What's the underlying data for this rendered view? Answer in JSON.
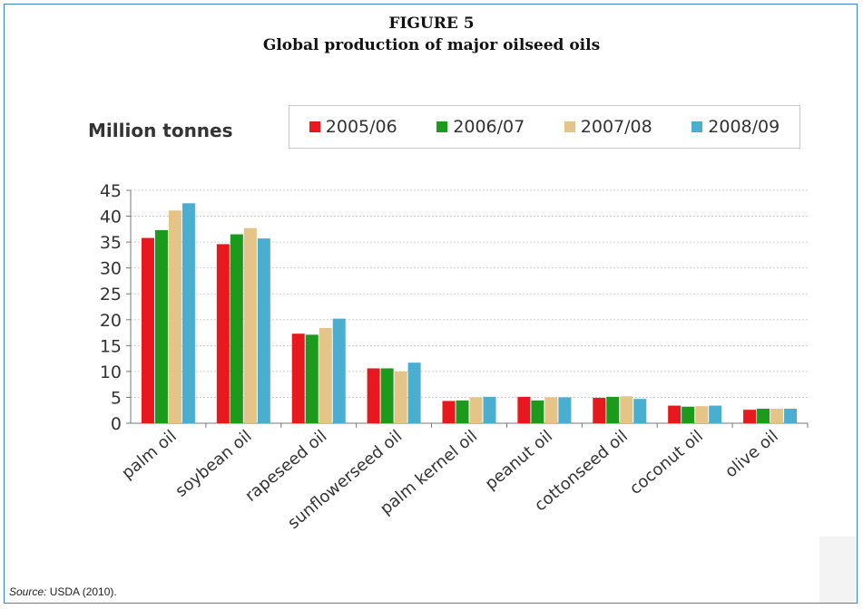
{
  "figure": {
    "label": "FIGURE 5",
    "title": "Global production of major oilseed oils"
  },
  "source": {
    "label": "Source:",
    "text": "USDA (2010)."
  },
  "chart_data": {
    "type": "bar",
    "ylabel": "Million tonnes",
    "ylim": [
      0,
      45
    ],
    "yticks": [
      0,
      5,
      10,
      15,
      20,
      25,
      30,
      35,
      40,
      45
    ],
    "grid": true,
    "legend_position": "top-right",
    "categories": [
      "palm oil",
      "soybean oil",
      "rapeseed oil",
      "sunflowerseed oil",
      "palm kernel oil",
      "peanut oil",
      "cottonseed oil",
      "coconut oil",
      "olive oil"
    ],
    "series": [
      {
        "name": "2005/06",
        "color": "#e8191e",
        "values": [
          35.8,
          34.6,
          17.3,
          10.6,
          4.3,
          5.1,
          4.9,
          3.4,
          2.6
        ]
      },
      {
        "name": "2006/07",
        "color": "#1c9a1c",
        "values": [
          37.3,
          36.5,
          17.1,
          10.6,
          4.4,
          4.4,
          5.1,
          3.2,
          2.8
        ]
      },
      {
        "name": "2007/08",
        "color": "#e4c487",
        "values": [
          41.1,
          37.7,
          18.4,
          10.0,
          5.0,
          5.0,
          5.2,
          3.3,
          2.8
        ]
      },
      {
        "name": "2008/09",
        "color": "#4aaed0",
        "values": [
          42.5,
          35.7,
          20.2,
          11.7,
          5.1,
          5.0,
          4.7,
          3.4,
          2.8
        ]
      }
    ]
  }
}
